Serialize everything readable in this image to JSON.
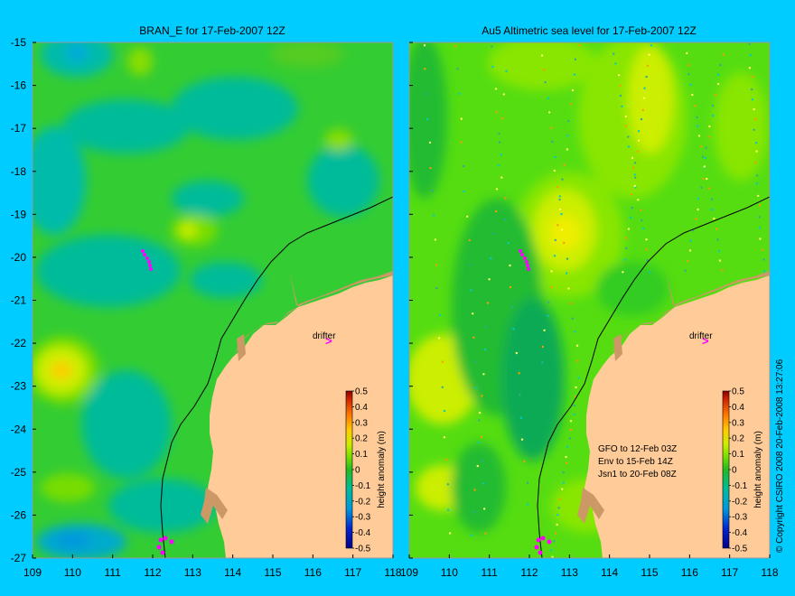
{
  "panels": [
    {
      "title": "BRAN_E for 17-Feb-2007 12Z",
      "annotation_lines": []
    },
    {
      "title": "Au5 Altimetric sea level  for 17-Feb-2007 12Z",
      "annotation_lines": [
        "GFO to 12-Feb 03Z",
        "Env to 15-Feb 14Z",
        "Jsn1 to 20-Feb 08Z"
      ]
    }
  ],
  "x_ticks": [
    "109",
    "110",
    "111",
    "112",
    "113",
    "114",
    "115",
    "116",
    "117",
    "118"
  ],
  "y_ticks": [
    "-15",
    "-16",
    "-17",
    "-18",
    "-19",
    "-20",
    "-21",
    "-22",
    "-23",
    "-24",
    "-25",
    "-26",
    "-27"
  ],
  "drifter_label": "drifter",
  "colorbar": {
    "label": "height anomaly (m)",
    "ticks": [
      "0.5",
      "0.4",
      "0.3",
      "0.2",
      "0.1",
      "0",
      "-0.1",
      "-0.2",
      "-0.3",
      "-0.4",
      "-0.5"
    ]
  },
  "copyright": "© Copyright CSIRO 2008   20-Feb-2008 13:27:06",
  "colors": {
    "background": "#00ccff",
    "land": "#ffcc99",
    "reef": "#cc9966",
    "drifter": "#ff00ff",
    "sea_base_left": "#33cc33",
    "sea_base_right": "#55dd11"
  },
  "chart_data": {
    "type": "heatmap",
    "x_range": [
      109,
      118
    ],
    "y_range": [
      -27,
      -15
    ],
    "value_range": [
      -0.5,
      0.5
    ],
    "drifter_track": [
      [
        111.8,
        -19.8
      ],
      [
        111.9,
        -20.0
      ],
      [
        111.9,
        -20.2
      ]
    ],
    "drifter_position": [
      116.5,
      -22.0
    ]
  }
}
